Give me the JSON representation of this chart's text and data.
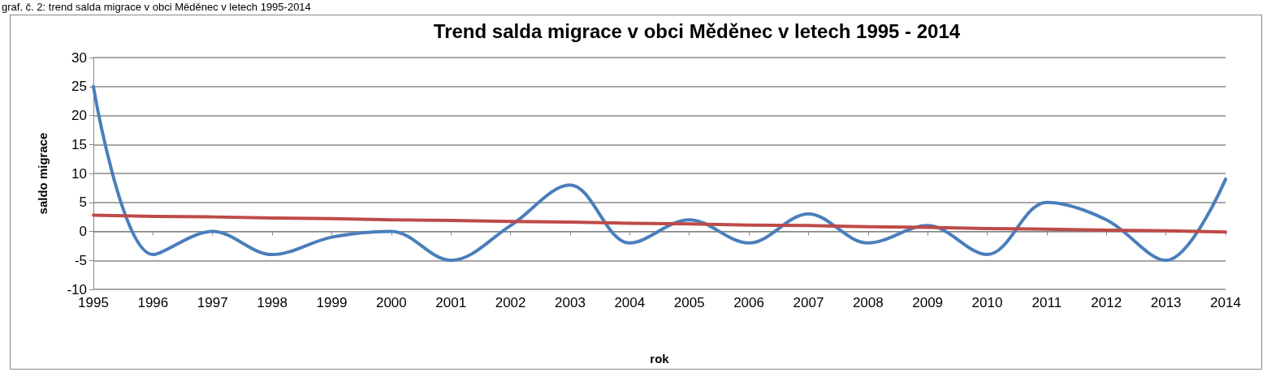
{
  "chart_data": {
    "type": "line",
    "title": "Trend salda migrace v obci Měděnec v letech 1995 - 2014",
    "xlabel": "rok",
    "ylabel": "saldo migrace",
    "annotations": [
      "graf. č. 2: trend salda migrace v obci Měděnec v letech 1995-2014"
    ],
    "categories": [
      "1995",
      "1996",
      "1997",
      "1998",
      "1999",
      "2000",
      "2001",
      "2002",
      "2003",
      "2004",
      "2005",
      "2006",
      "2007",
      "2008",
      "2009",
      "2010",
      "2011",
      "2012",
      "2013",
      "2014"
    ],
    "series": [
      {
        "color": "#4a7ebb",
        "values": [
          25,
          -4,
          0,
          -4,
          -1,
          0,
          -5,
          1,
          8,
          -2,
          2,
          -2,
          3,
          -2,
          1,
          -4,
          5,
          2,
          -5,
          9
        ]
      },
      {
        "color": "#be4b48",
        "values": [
          2.8,
          2.6,
          2.5,
          2.3,
          2.2,
          2.0,
          1.9,
          1.7,
          1.6,
          1.4,
          1.3,
          1.1,
          1.0,
          0.8,
          0.7,
          0.5,
          0.4,
          0.2,
          0.1,
          -0.1
        ]
      }
    ],
    "ylim": [
      -10,
      30
    ],
    "yticks": [
      -10,
      -5,
      0,
      5,
      10,
      15,
      20,
      25,
      30
    ],
    "grid": "y",
    "marker": "none"
  }
}
